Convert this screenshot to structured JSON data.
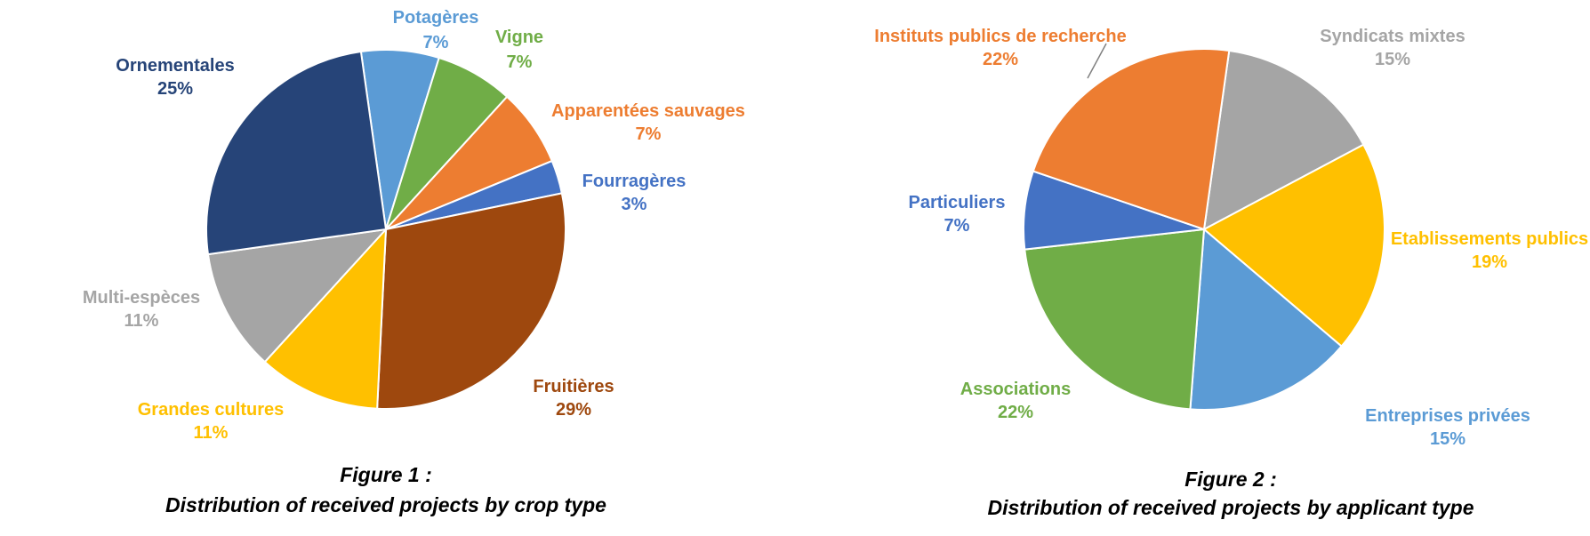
{
  "chart_data": [
    {
      "type": "pie",
      "caption_line1": "Figure 1 :",
      "caption_line2": "Distribution of received projects by crop type",
      "slices": [
        {
          "label": "Potagères",
          "value": 7,
          "value_text": "7%",
          "color": "#5B9BD5"
        },
        {
          "label": "Vigne",
          "value": 7,
          "value_text": "7%",
          "color": "#70AD47"
        },
        {
          "label": "Apparentées sauvages",
          "value": 7,
          "value_text": "7%",
          "color": "#ED7D31"
        },
        {
          "label": "Fourragères",
          "value": 3,
          "value_text": "3%",
          "color": "#4472C4"
        },
        {
          "label": "Fruitières",
          "value": 29,
          "value_text": "29%",
          "color": "#9E480E"
        },
        {
          "label": "Grandes cultures",
          "value": 11,
          "value_text": "11%",
          "color": "#FFC000"
        },
        {
          "label": "Multi-espèces",
          "value": 11,
          "value_text": "11%",
          "color": "#A5A5A5"
        },
        {
          "label": "Ornementales",
          "value": 25,
          "value_text": "25%",
          "color": "#264478"
        }
      ]
    },
    {
      "type": "pie",
      "caption_line1": "Figure 2 :",
      "caption_line2": "Distribution of received projects by applicant type",
      "slices": [
        {
          "label": "Syndicats mixtes",
          "value": 15,
          "value_text": "15%",
          "color": "#A5A5A5"
        },
        {
          "label": "Etablissements publics",
          "value": 19,
          "value_text": "19%",
          "color": "#FFC000"
        },
        {
          "label": "Entreprises privées",
          "value": 15,
          "value_text": "15%",
          "color": "#5B9BD5"
        },
        {
          "label": "Associations",
          "value": 22,
          "value_text": "22%",
          "color": "#70AD47"
        },
        {
          "label": "Particuliers",
          "value": 7,
          "value_text": "7%",
          "color": "#4472C4"
        },
        {
          "label": "Instituts publics de recherche",
          "value": 22,
          "value_text": "22%",
          "color": "#ED7D31"
        }
      ]
    }
  ]
}
